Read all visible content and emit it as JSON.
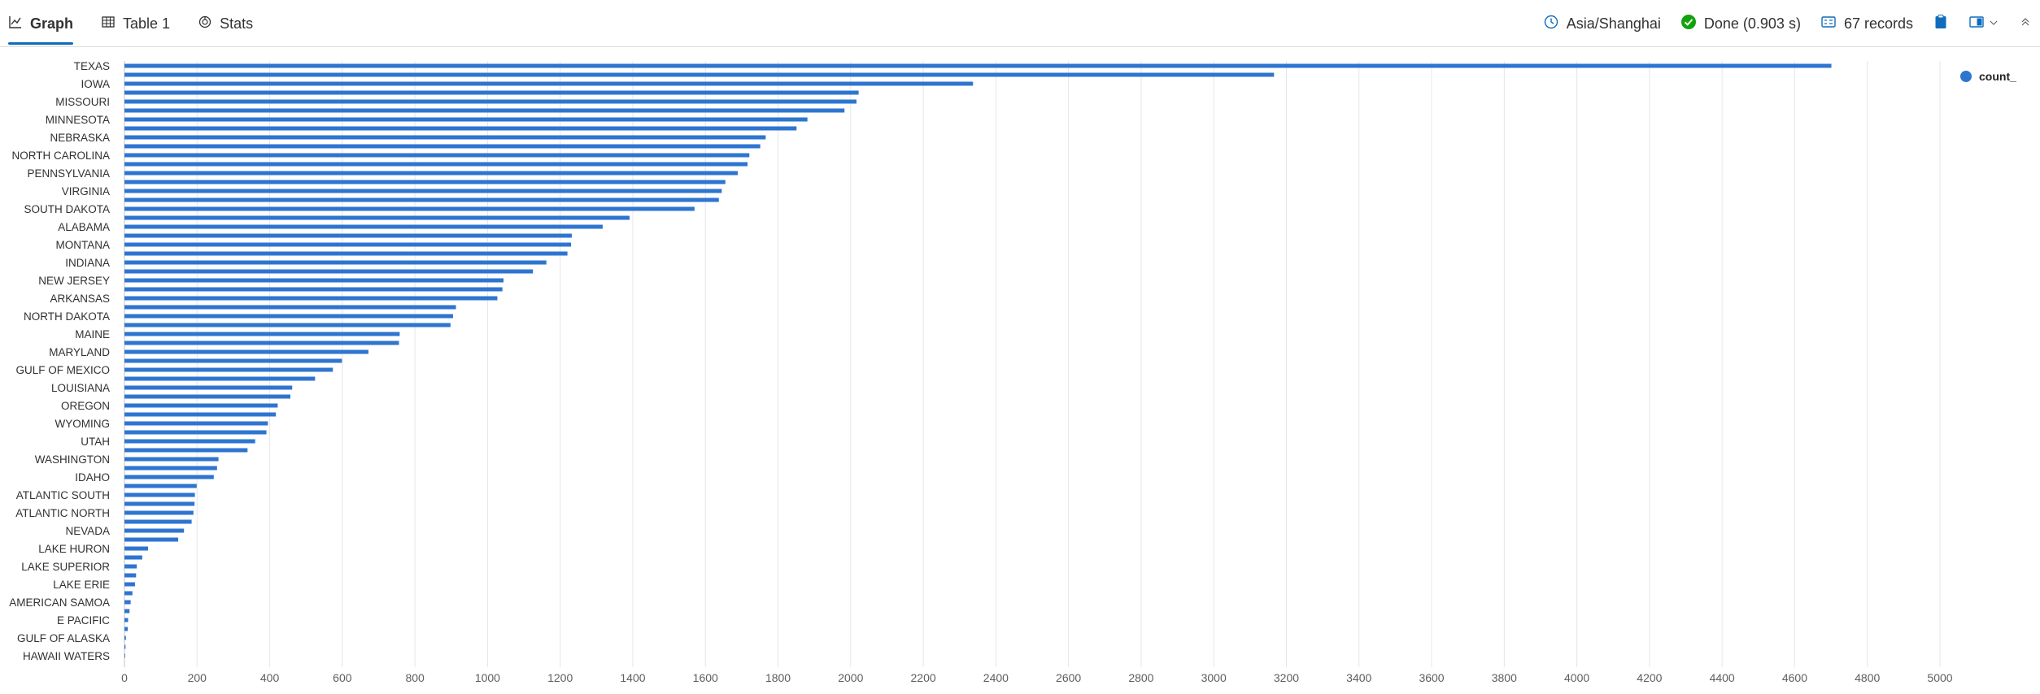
{
  "tabs": [
    {
      "label": "Graph",
      "icon": "line-chart-icon",
      "active": true
    },
    {
      "label": "Table 1",
      "icon": "table-icon",
      "active": false
    },
    {
      "label": "Stats",
      "icon": "stats-icon",
      "active": false
    }
  ],
  "status": {
    "timezone": "Asia/Shanghai",
    "done": "Done (0.903 s)",
    "records": "67 records"
  },
  "colors": {
    "bar": "#2e75d0",
    "accent": "#0f6cbd",
    "success": "#13a10e",
    "grid": "#e6e6e6"
  },
  "chart_data": {
    "type": "bar",
    "orientation": "horizontal",
    "series": [
      {
        "name": "count_"
      }
    ],
    "xlim": [
      0,
      5000
    ],
    "xticks": [
      0,
      200,
      400,
      600,
      800,
      1000,
      1200,
      1400,
      1600,
      1800,
      2000,
      2200,
      2400,
      2600,
      2800,
      3000,
      3200,
      3400,
      3600,
      3800,
      4000,
      4200,
      4400,
      4600,
      4800,
      5000
    ],
    "grid": "vertical",
    "legend": "top-right",
    "label_every": 2,
    "categories": [
      "TEXAS",
      "",
      "IOWA",
      "",
      "MISSOURI",
      "",
      "MINNESOTA",
      "",
      "NEBRASKA",
      "",
      "NORTH CAROLINA",
      "",
      "PENNSYLVANIA",
      "",
      "VIRGINIA",
      "",
      "SOUTH DAKOTA",
      "",
      "ALABAMA",
      "",
      "MONTANA",
      "",
      "INDIANA",
      "",
      "NEW JERSEY",
      "",
      "ARKANSAS",
      "",
      "NORTH DAKOTA",
      "",
      "MAINE",
      "",
      "MARYLAND",
      "",
      "GULF OF MEXICO",
      "",
      "LOUISIANA",
      "",
      "OREGON",
      "",
      "WYOMING",
      "",
      "UTAH",
      "",
      "WASHINGTON",
      "",
      "IDAHO",
      "",
      "ATLANTIC SOUTH",
      "",
      "ATLANTIC NORTH",
      "",
      "NEVADA",
      "",
      "LAKE HURON",
      "",
      "LAKE SUPERIOR",
      "",
      "LAKE ERIE",
      "",
      "AMERICAN SAMOA",
      "",
      "E PACIFIC",
      "",
      "GULF OF ALASKA",
      "",
      "HAWAII WATERS"
    ],
    "values": [
      4701,
      3166,
      2337,
      2022,
      2016,
      1983,
      1881,
      1851,
      1766,
      1751,
      1721,
      1716,
      1689,
      1655,
      1645,
      1637,
      1570,
      1391,
      1317,
      1232,
      1230,
      1220,
      1162,
      1125,
      1044,
      1041,
      1027,
      913,
      905,
      898,
      758,
      756,
      672,
      599,
      574,
      525,
      462,
      457,
      422,
      417,
      395,
      391,
      360,
      339,
      259,
      255,
      246,
      199,
      194,
      193,
      190,
      185,
      164,
      148,
      65,
      49,
      34,
      32,
      29,
      22,
      17,
      14,
      10,
      9,
      4,
      3,
      2
    ]
  }
}
